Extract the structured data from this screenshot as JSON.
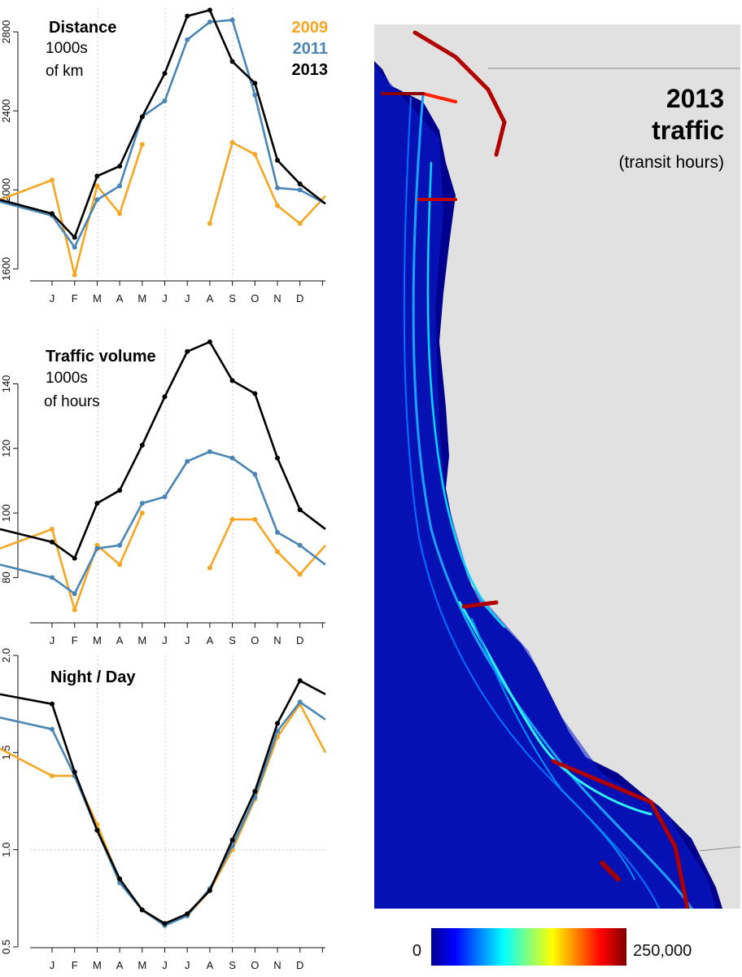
{
  "colors": {
    "y2009": "#f5a623",
    "y2011": "#4a86b5",
    "y2013": "#000000",
    "grid": "#cccccc",
    "land": "#e1e1e1",
    "sea_low": "#00008f",
    "sea_high": "#8b0000"
  },
  "legend": [
    {
      "label": "2009",
      "color": "#f5a623"
    },
    {
      "label": "2011",
      "color": "#4a86b5"
    },
    {
      "label": "2013",
      "color": "#000000"
    }
  ],
  "map": {
    "title_line1": "2013",
    "title_line2": "traffic",
    "subtitle": "(transit hours)",
    "colorbar_min": "0",
    "colorbar_max": "250,000"
  },
  "chart_data": [
    {
      "type": "line",
      "title": "Distance",
      "subtitle_line1": "1000s",
      "subtitle_line2": "of km",
      "categories": [
        "J",
        "F",
        "M",
        "A",
        "M",
        "J",
        "J",
        "A",
        "S",
        "O",
        "N",
        "D"
      ],
      "ylim": [
        1560,
        2920
      ],
      "yticks": [
        1600,
        2000,
        2400,
        2800
      ],
      "ytick_labels": [
        "1600",
        "2000",
        "2400",
        "2800"
      ],
      "series": [
        {
          "name": "2009",
          "values": [
            2050,
            1570,
            2020,
            1880,
            2230,
            null,
            null,
            1830,
            2240,
            2180,
            1920,
            1830
          ],
          "edge_left": 1950,
          "edge_right": 1970
        },
        {
          "name": "2011",
          "values": [
            1870,
            1710,
            1950,
            2020,
            2370,
            2450,
            2760,
            2850,
            2860,
            2480,
            2010,
            2000
          ],
          "edge_left": 1940,
          "edge_right": 1930
        },
        {
          "name": "2013",
          "values": [
            1880,
            1760,
            2070,
            2120,
            2370,
            2590,
            2880,
            2910,
            2650,
            2540,
            2150,
            2030
          ],
          "edge_left": 1950,
          "edge_right": 1930
        }
      ]
    },
    {
      "type": "line",
      "title": "Traffic volume",
      "subtitle_line1": "1000s",
      "subtitle_line2": "of hours",
      "categories": [
        "J",
        "F",
        "M",
        "A",
        "M",
        "J",
        "J",
        "A",
        "S",
        "O",
        "N",
        "D"
      ],
      "ylim": [
        68,
        157
      ],
      "yticks": [
        80,
        100,
        120,
        140
      ],
      "ytick_labels": [
        "80",
        "100",
        "120",
        "140"
      ],
      "series": [
        {
          "name": "2009",
          "values": [
            95,
            70,
            90,
            84,
            100,
            null,
            null,
            83,
            98,
            98,
            88,
            81
          ],
          "edge_left": 89,
          "edge_right": 90
        },
        {
          "name": "2011",
          "values": [
            80,
            75,
            89,
            90,
            103,
            105,
            116,
            119,
            117,
            112,
            94,
            90
          ],
          "edge_left": 84,
          "edge_right": 84
        },
        {
          "name": "2013",
          "values": [
            91,
            86,
            103,
            107,
            121,
            136,
            150,
            153,
            141,
            137,
            117,
            101
          ],
          "edge_left": 95,
          "edge_right": 95
        }
      ]
    },
    {
      "type": "line",
      "title": "Night / Day",
      "subtitle_line1": "",
      "subtitle_line2": "",
      "categories": [
        "J",
        "F",
        "M",
        "A",
        "M",
        "J",
        "J",
        "A",
        "S",
        "O",
        "N",
        "D"
      ],
      "ylim": [
        0.5,
        2.0
      ],
      "yticks": [
        0.5,
        1.0,
        1.5,
        2.0
      ],
      "ytick_labels": [
        "0.5",
        "1.0",
        "1.5",
        "2.0"
      ],
      "hline": 1.0,
      "series": [
        {
          "name": "2009",
          "values": [
            1.38,
            1.38,
            1.13,
            0.84,
            0.69,
            0.62,
            0.66,
            0.79,
            1.0,
            1.26,
            1.58,
            1.75
          ],
          "edge_left": 1.52,
          "edge_right": 1.5
        },
        {
          "name": "2011",
          "values": [
            1.62,
            1.38,
            1.1,
            0.83,
            0.69,
            0.61,
            0.66,
            0.8,
            1.02,
            1.27,
            1.61,
            1.76
          ],
          "edge_left": 1.68,
          "edge_right": 1.67
        },
        {
          "name": "2013",
          "values": [
            1.75,
            1.4,
            1.1,
            0.85,
            0.69,
            0.62,
            0.67,
            0.79,
            1.05,
            1.3,
            1.65,
            1.87
          ],
          "edge_left": 1.8,
          "edge_right": 1.8
        }
      ]
    }
  ]
}
